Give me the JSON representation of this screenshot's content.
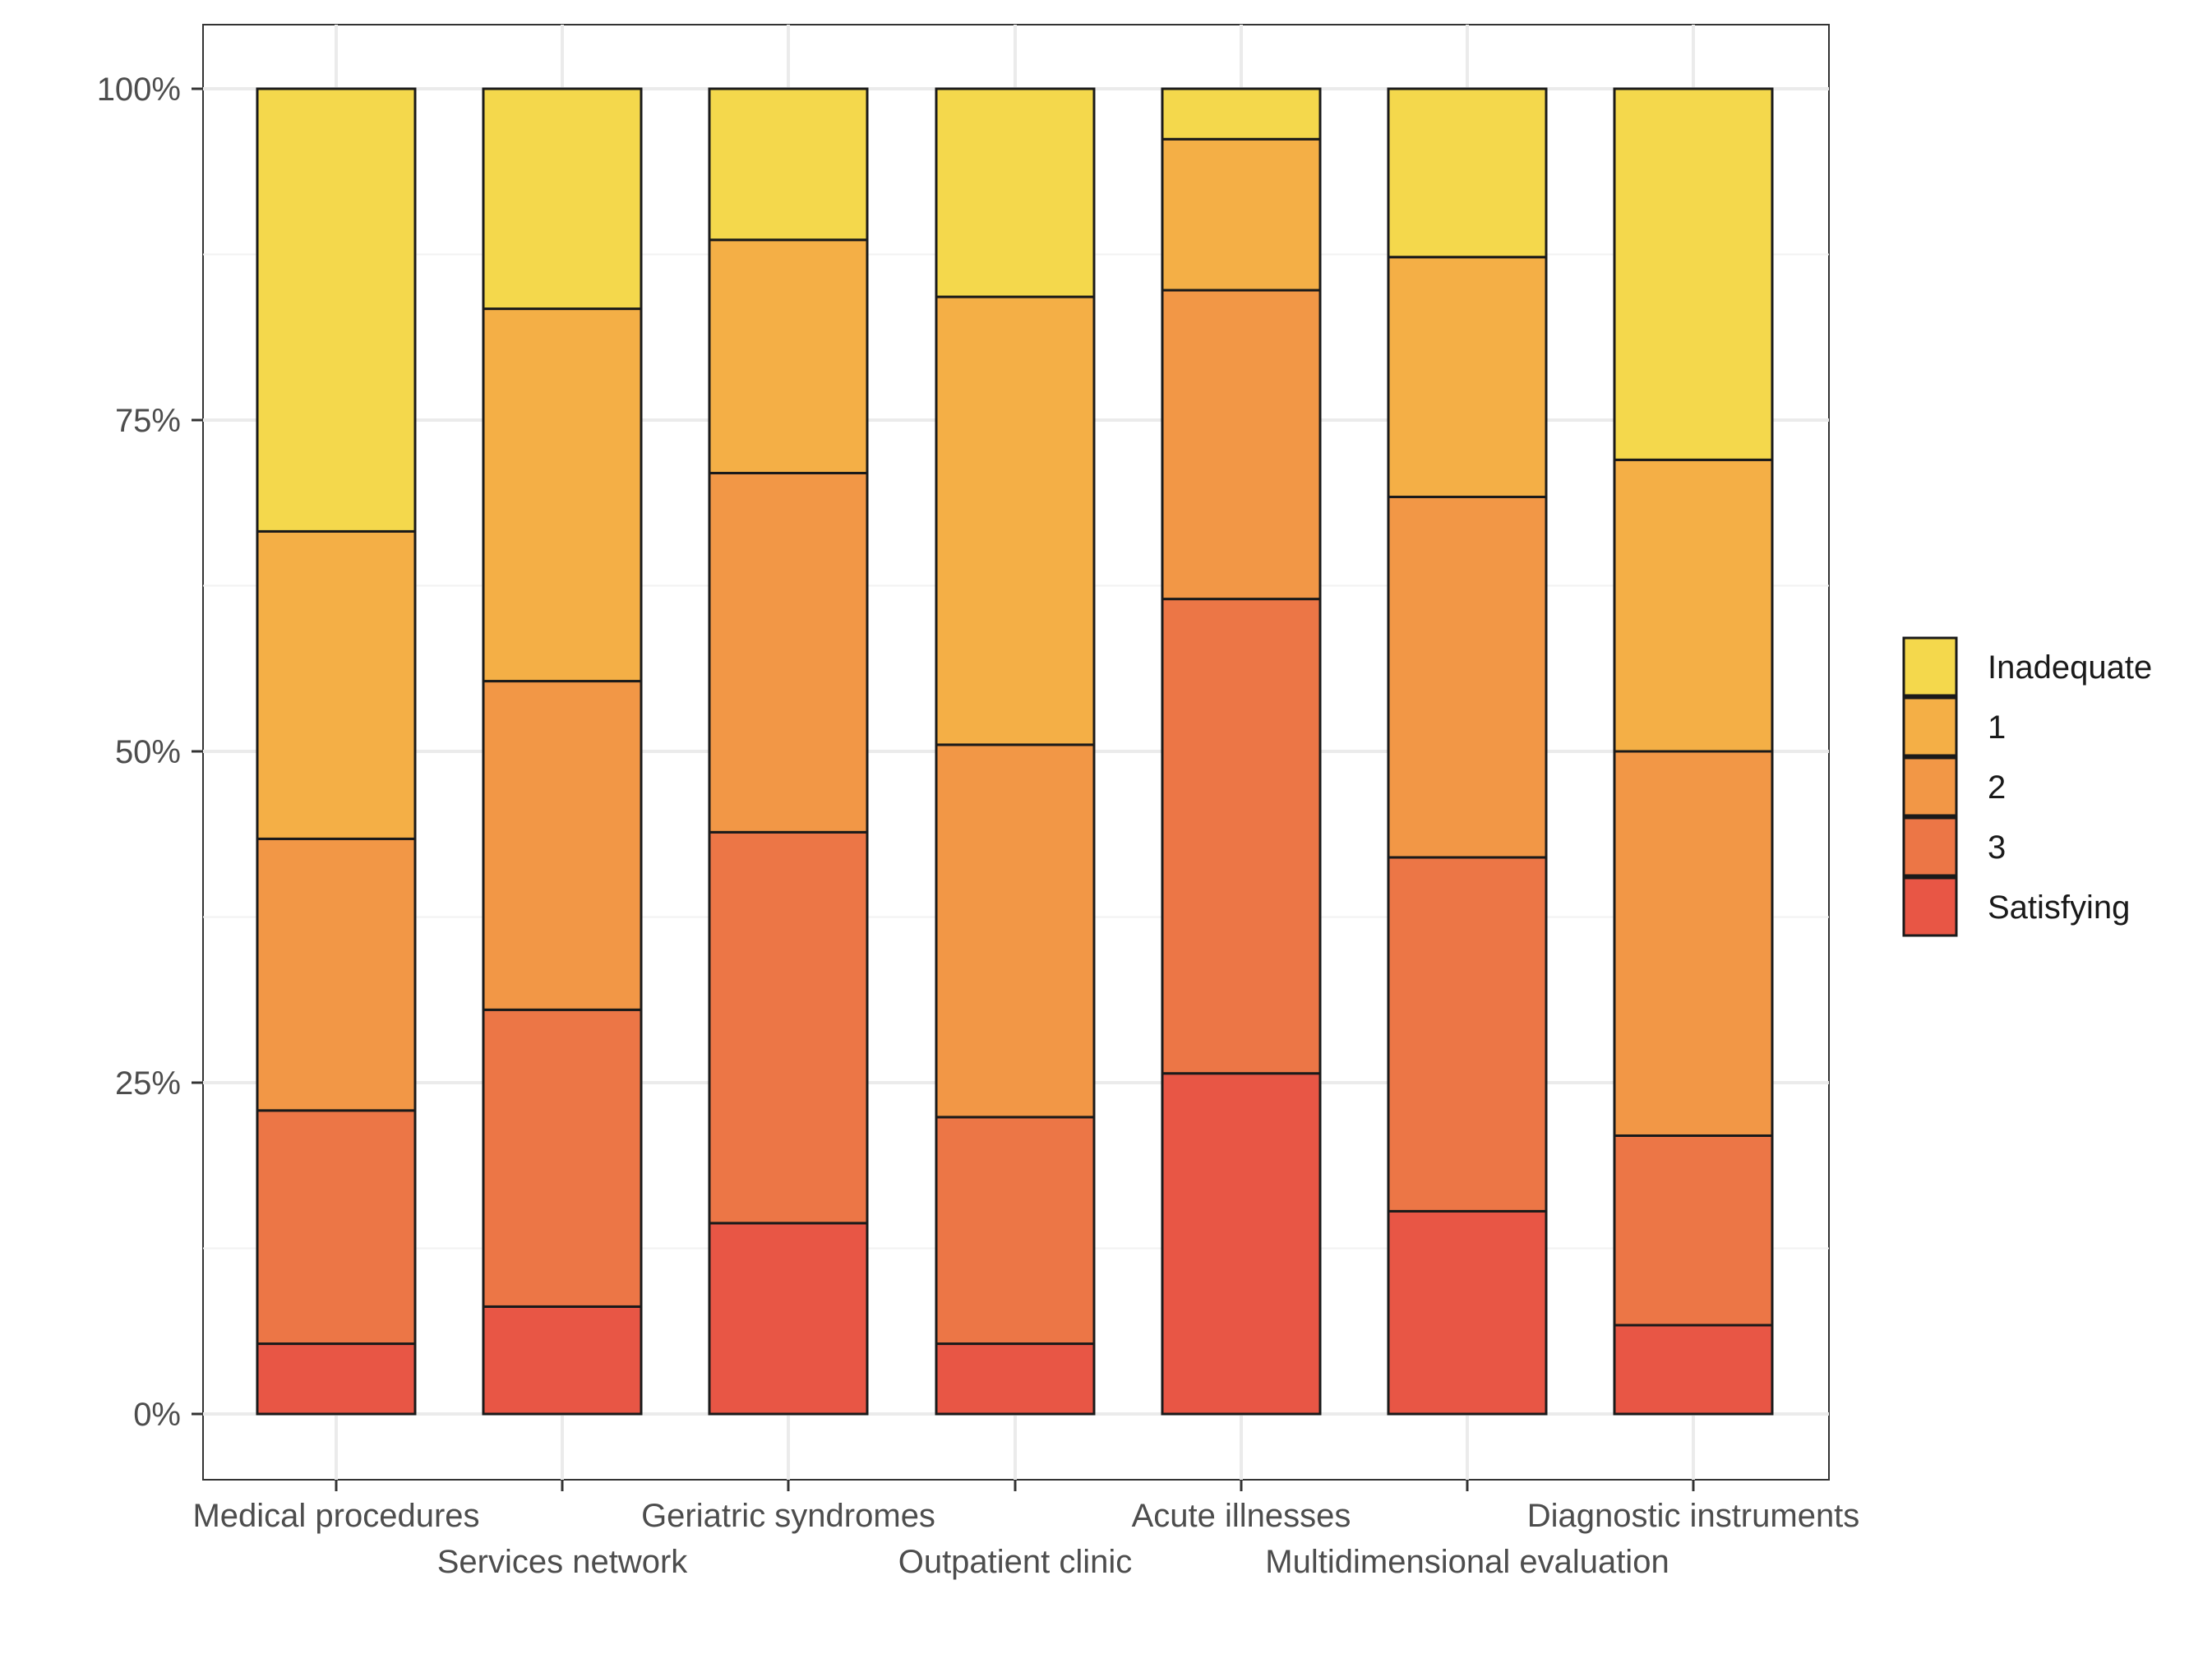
{
  "chart_data": {
    "type": "bar",
    "stacked": true,
    "percent": true,
    "title": "",
    "xlabel": "",
    "ylabel": "",
    "ylim": [
      0,
      100
    ],
    "yticks": [
      "0%",
      "25%",
      "50%",
      "75%",
      "100%"
    ],
    "ytick_values": [
      0,
      25,
      50,
      75,
      100
    ],
    "grid": true,
    "legend_position": "right",
    "categories": [
      "Medical procedures",
      "Services network",
      "Geriatric syndromes",
      "Outpatient clinic",
      "Acute illnesses",
      "Multidimensional evaluation",
      "Diagnostic instruments"
    ],
    "series": [
      {
        "name": "Satisfying",
        "color": "#E85645",
        "values": [
          5.3,
          8.1,
          14.4,
          5.3,
          25.7,
          15.3,
          6.7
        ]
      },
      {
        "name": "3",
        "color": "#EC7646",
        "values": [
          17.6,
          22.4,
          29.5,
          17.1,
          35.8,
          26.7,
          14.3
        ]
      },
      {
        "name": "2",
        "color": "#F29746",
        "values": [
          20.5,
          24.8,
          27.1,
          28.1,
          23.3,
          27.2,
          29.0
        ]
      },
      {
        "name": "1",
        "color": "#F4AF46",
        "values": [
          23.2,
          28.1,
          17.6,
          33.8,
          11.4,
          18.1,
          22.0
        ]
      },
      {
        "name": "Inadequate",
        "color": "#F4D84C",
        "values": [
          33.4,
          16.6,
          11.4,
          15.7,
          3.8,
          12.7,
          28.0
        ]
      }
    ],
    "legend_order": [
      "Inadequate",
      "1",
      "2",
      "3",
      "Satisfying"
    ]
  }
}
